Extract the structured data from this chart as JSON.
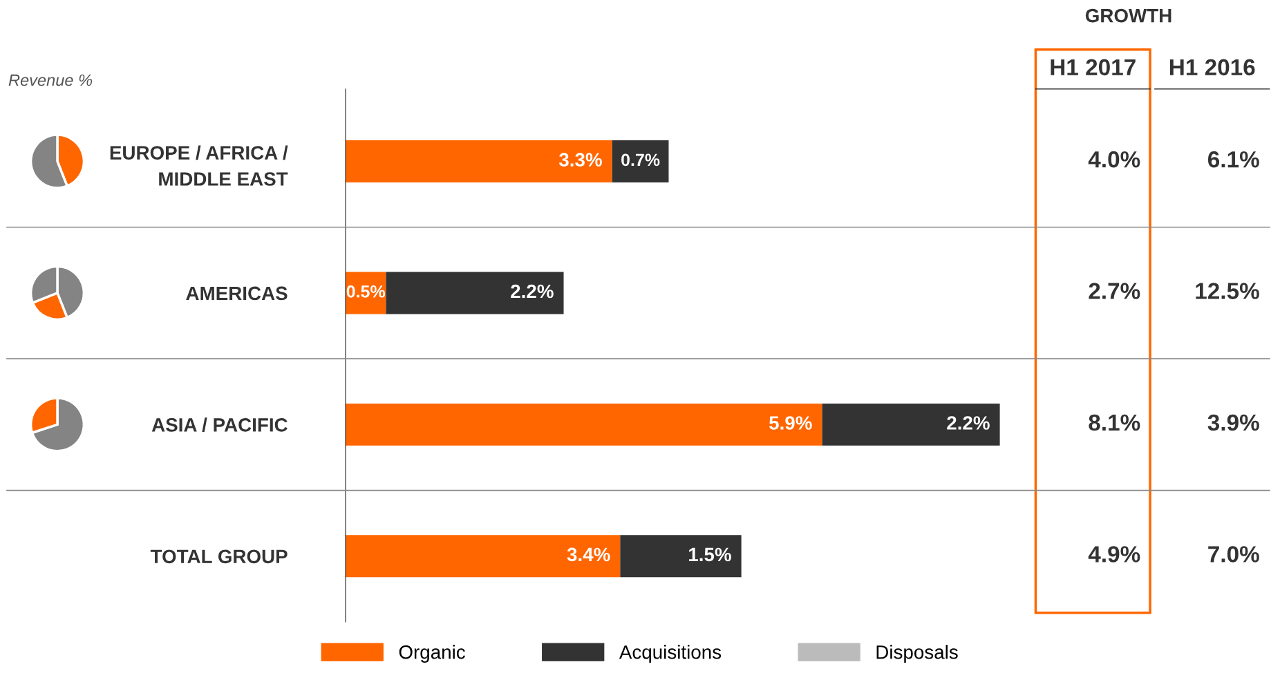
{
  "chart_data": [
    {
      "type": "pie",
      "categories": [
        null,
        null
      ],
      "values": [
        44,
        56
      ],
      "colors": [
        "#ff6600",
        "#848484"
      ],
      "annotations": [
        "Revenue %"
      ]
    },
    {
      "type": "pie",
      "categories": [
        null,
        null,
        null
      ],
      "values": [
        44,
        25,
        31
      ],
      "colors": [
        "#848484",
        "#ff6600",
        "#848484"
      ]
    },
    {
      "type": "pie",
      "categories": [
        null,
        null
      ],
      "values": [
        70,
        30
      ],
      "colors": [
        "#848484",
        "#ff6600"
      ]
    },
    {
      "type": "bar",
      "orientation": "horizontal",
      "stacked": true,
      "categories": [
        "EUROPE / AFRICA /\nMIDDLE EAST",
        "AMERICAS",
        "ASIA / PACIFIC",
        "TOTAL GROUP"
      ],
      "series": [
        {
          "name": "Organic",
          "color": "#ff6600",
          "values": [
            3.3,
            0.5,
            5.9,
            3.4
          ],
          "value_labels": [
            "3.3%",
            "0.5%",
            "5.9%",
            "3.4%"
          ]
        },
        {
          "name": "Acquisitions",
          "color": "#333333",
          "values": [
            0.7,
            2.2,
            2.2,
            1.5
          ],
          "value_labels": [
            "0.7%",
            "2.2%",
            "2.2%",
            "1.5%"
          ]
        },
        {
          "name": "Disposals",
          "color": "#bbbbbb",
          "values": [
            null,
            null,
            null,
            null
          ]
        }
      ],
      "data_labels": true,
      "legend": "bottom",
      "tick_labels": "y"
    },
    {
      "type": "other",
      "title": "GROWTH",
      "categories": [
        "H1 2017",
        "H1 2016"
      ],
      "annotations": [
        "4.0%",
        "6.1%",
        "2.7%",
        "12.5%",
        "8.1%",
        "3.9%",
        "4.9%",
        "7.0%"
      ]
    }
  ]
}
